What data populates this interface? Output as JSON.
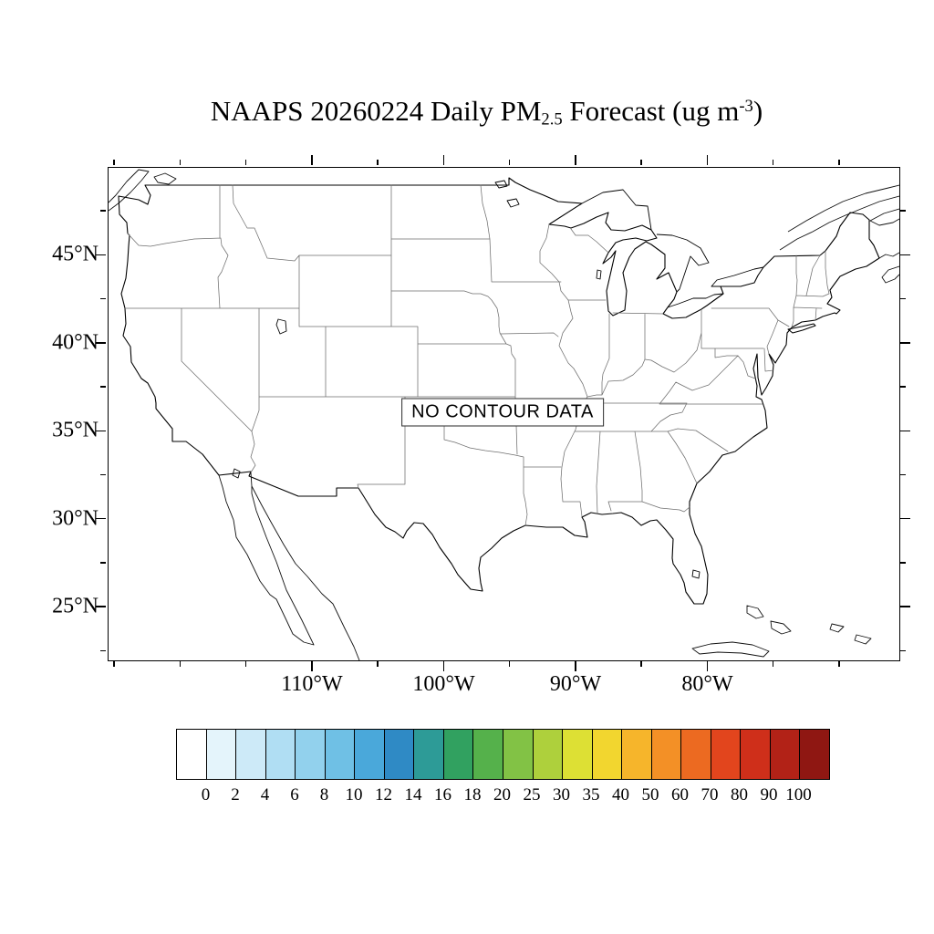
{
  "title": {
    "prefix": "NAAPS 20260224 Daily PM",
    "subscript": "2.5",
    "middle": " Forecast (ug m",
    "superscript": "-3",
    "suffix": ")"
  },
  "map": {
    "no_data_label": "NO CONTOUR DATA"
  },
  "chart_data": {
    "type": "heatmap",
    "subtype": "filled-contour-forecast-map",
    "title": "NAAPS 20260224 Daily PM2.5 Forecast (ug m-3)",
    "units": "ug m-3",
    "annotation": "NO CONTOUR DATA",
    "no_contour_data": true,
    "region": "Continental United States",
    "extent": {
      "lon_min": -125.5,
      "lon_max": -65.5,
      "lat_min": 22,
      "lat_max": 50
    },
    "grid": false,
    "legend_position": "bottom",
    "x_ticks": {
      "values": [
        -110,
        -100,
        -90,
        -80
      ],
      "labels": [
        "110°W",
        "100°W",
        "90°W",
        "80°W"
      ]
    },
    "y_ticks": {
      "values": [
        45,
        40,
        35,
        30,
        25
      ],
      "labels": [
        "45°N",
        "40°N",
        "35°N",
        "30°N",
        "25°N"
      ]
    },
    "x_minor_ticks": [
      -125,
      -120,
      -115,
      -105,
      -95,
      -85,
      -75,
      -70
    ],
    "y_minor_ticks": [
      47.5,
      42.5,
      37.5,
      32.5,
      27.5,
      22.5
    ],
    "colorbar": {
      "levels": [
        0,
        2,
        4,
        6,
        8,
        10,
        12,
        14,
        16,
        18,
        20,
        25,
        30,
        35,
        40,
        50,
        60,
        70,
        80,
        90,
        100
      ],
      "colors": [
        "#ffffff",
        "#e4f4fb",
        "#cdeaf8",
        "#b0def3",
        "#92d1ed",
        "#6fc0e5",
        "#4aa8da",
        "#2f8ac5",
        "#2d9b97",
        "#31a160",
        "#55b14b",
        "#82c245",
        "#aed03c",
        "#dde034",
        "#f2d62f",
        "#f6b52b",
        "#f39026",
        "#ec6a21",
        "#e2451d",
        "#cf2f1a",
        "#b22217",
        "#8f1712"
      ]
    }
  }
}
